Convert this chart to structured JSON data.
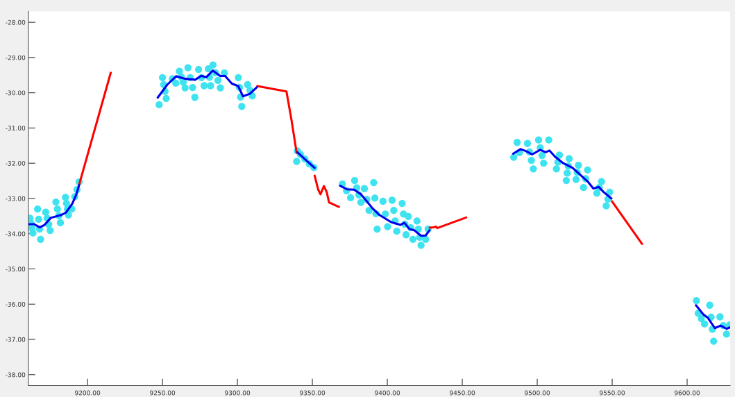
{
  "chart_data": {
    "type": "scatter",
    "xlim": [
      9160.6,
      9628.7
    ],
    "ylim": [
      -38.31,
      -27.69
    ],
    "xticks": [
      {
        "value": 9200,
        "label": "9200.00"
      },
      {
        "value": 9250,
        "label": "9250.00"
      },
      {
        "value": 9300,
        "label": "9300.00"
      },
      {
        "value": 9350,
        "label": "9350.00"
      },
      {
        "value": 9400,
        "label": "9400.00"
      },
      {
        "value": 9450,
        "label": "9450.00"
      },
      {
        "value": 9500,
        "label": "9500.00"
      },
      {
        "value": 9550,
        "label": "9550.00"
      },
      {
        "value": 9600,
        "label": "9600.00"
      }
    ],
    "yticks": [
      {
        "value": -28,
        "label": "-28.00"
      },
      {
        "value": -29,
        "label": "-29.00"
      },
      {
        "value": -30,
        "label": "-30.00"
      },
      {
        "value": -31,
        "label": "-31.00"
      },
      {
        "value": -32,
        "label": "-32.00"
      },
      {
        "value": -33,
        "label": "-33.00"
      },
      {
        "value": -34,
        "label": "-34.00"
      },
      {
        "value": -35,
        "label": "-35.00"
      },
      {
        "value": -36,
        "label": "-36.00"
      },
      {
        "value": -37,
        "label": "-37.00"
      },
      {
        "value": -38,
        "label": "-38.00"
      }
    ],
    "grid": false,
    "series": [
      {
        "marker": "circle",
        "color": "#3fe3f0",
        "x": [
          9161.6,
          9162.3,
          9162.9,
          9163.6,
          9166.7,
          9167.4,
          9168.0,
          9168.7,
          9172.1,
          9173.1,
          9174.1,
          9175.1,
          9178.9,
          9179.9,
          9180.9,
          9181.9,
          9185.3,
          9186.0,
          9186.6,
          9187.3,
          9189.5,
          9191.5,
          9193.0,
          9194.4,
          9247.8,
          9250.0,
          9250.8,
          9251.7,
          9252.5,
          9256.6,
          9258.9,
          9261.3,
          9262.6,
          9263.8,
          9265.1,
          9267.0,
          9268.5,
          9270.1,
          9271.6,
          9274.1,
          9276.0,
          9277.8,
          9280.6,
          9281.4,
          9282.1,
          9283.7,
          9285.3,
          9287.0,
          9288.6,
          9291.3,
          9300.6,
          9301.4,
          9302.1,
          9302.9,
          9306.8,
          9308.4,
          9309.9,
          9339.5,
          9340.0,
          9342.0,
          9345.0,
          9348.0,
          9351.0,
          9370.0,
          9372.8,
          9375.5,
          9378.2,
          9379.6,
          9381.0,
          9382.4,
          9384.7,
          9386.3,
          9387.8,
          9390.9,
          9391.7,
          9392.4,
          9393.2,
          9397.1,
          9398.7,
          9400.2,
          9403.2,
          9404.3,
          9405.2,
          9406.3,
          9409.9,
          9410.8,
          9411.7,
          9412.5,
          9414.0,
          9415.6,
          9417.1,
          9419.8,
          9420.7,
          9421.6,
          9422.5,
          9427.2,
          9425.6,
          9484.3,
          9486.6,
          9488.1,
          9493.5,
          9494.8,
          9496.1,
          9497.4,
          9500.9,
          9502.0,
          9503.2,
          9504.3,
          9507.7,
          9514.8,
          9513.8,
          9512.8,
          9521.3,
          9520.7,
          9520.0,
          9519.4,
          9527.5,
          9526.7,
          9525.9,
          9533.6,
          9532.3,
          9530.9,
          9542.9,
          9541.4,
          9539.8,
          9548.3,
          9547.2,
          9546.0,
          9606.2,
          9607.4,
          9609.5,
          9611.6,
          9615.1,
          9616.0,
          9616.8,
          9617.7,
          9621.9,
          9624.1,
          9626.3,
          9628.5
        ],
        "values": [
          -33.56,
          -33.7,
          -33.84,
          -33.98,
          -33.3,
          -33.59,
          -33.87,
          -34.16,
          -33.39,
          -33.56,
          -33.74,
          -33.91,
          -33.1,
          -33.3,
          -33.49,
          -33.69,
          -32.97,
          -33.14,
          -33.3,
          -33.47,
          -33.3,
          -32.95,
          -32.75,
          -32.53,
          -30.34,
          -29.57,
          -29.77,
          -29.96,
          -30.16,
          -29.6,
          -29.73,
          -29.39,
          -29.55,
          -29.7,
          -29.86,
          -29.29,
          -29.57,
          -29.85,
          -30.13,
          -29.34,
          -29.57,
          -29.8,
          -29.32,
          -29.56,
          -29.8,
          -29.21,
          -29.43,
          -29.65,
          -29.86,
          -29.44,
          -29.57,
          -29.85,
          -30.12,
          -30.39,
          -29.77,
          -29.93,
          -30.09,
          -31.95,
          -31.65,
          -31.75,
          -31.88,
          -32.02,
          -32.12,
          -32.59,
          -32.78,
          -32.98,
          -32.49,
          -32.7,
          -32.9,
          -33.11,
          -32.72,
          -33.03,
          -33.34,
          -32.55,
          -32.99,
          -33.43,
          -33.87,
          -33.08,
          -33.44,
          -33.8,
          -33.05,
          -33.34,
          -33.64,
          -33.93,
          -33.14,
          -33.44,
          -33.73,
          -34.03,
          -33.51,
          -33.83,
          -34.16,
          -33.64,
          -33.87,
          -34.1,
          -34.33,
          -33.87,
          -34.16,
          -31.83,
          -31.41,
          -31.7,
          -31.44,
          -31.68,
          -31.92,
          -32.16,
          -31.34,
          -31.56,
          -31.78,
          -32.0,
          -31.34,
          -31.77,
          -31.97,
          -32.16,
          -31.87,
          -32.08,
          -32.28,
          -32.49,
          -32.06,
          -32.26,
          -32.46,
          -32.19,
          -32.44,
          -32.69,
          -32.52,
          -32.69,
          -32.85,
          -32.82,
          -33.02,
          -33.21,
          -35.9,
          -36.26,
          -36.41,
          -36.56,
          -36.03,
          -36.37,
          -36.71,
          -37.05,
          -36.36,
          -36.61,
          -36.85,
          -36.59
        ]
      },
      {
        "type": "line",
        "line_style": "solid",
        "color": "#ff0000",
        "x": [
          9194.4,
          9215.5,
          9250,
          9313.3,
          9332.7,
          9336.1,
          9339.5,
          9345,
          9351.5,
          9353.9,
          9355.4,
          9357.7,
          9359.6,
          9361.1,
          9367.7,
          9400,
          9428.2,
          9431.0,
          9432.5,
          9433.3,
          9452.6,
          9500,
          9549.9,
          9569.9
        ],
        "values": [
          -32.61,
          -29.43,
          null,
          -29.81,
          -29.96,
          -30.78,
          -31.7,
          null,
          -32.35,
          -32.75,
          -32.88,
          -32.65,
          -32.82,
          -33.11,
          -33.24,
          null,
          -33.83,
          -33.82,
          -33.8,
          -33.84,
          -33.54,
          null,
          -33.08,
          -34.29
        ]
      },
      {
        "type": "line",
        "line_style": "solid",
        "color": "#0000ee",
        "x": [
          9160.6,
          9164.4,
          9168.1,
          9171.3,
          9175.5,
          9182.4,
          9185.6,
          9189.8,
          9192.6,
          9194.4,
          9220,
          9246.8,
          9253.2,
          9259.1,
          9264.8,
          9271.8,
          9275.9,
          9279.2,
          9283.6,
          9288.7,
          9291.7,
          9296.3,
          9300.5,
          9303.7,
          9308.3,
          9313.0,
          9325,
          9340.0,
          9345.4,
          9351.5,
          9360,
          9368.5,
          9373.1,
          9377.8,
          9382.4,
          9386.3,
          9390.1,
          9394.8,
          9402.5,
          9408.7,
          9411.4,
          9414.8,
          9417.9,
          9422.5,
          9425.6,
          9428.2,
          9450,
          9483.9,
          9488.9,
          9492.7,
          9496.6,
          9502.0,
          9505.6,
          9508.2,
          9512.0,
          9517.4,
          9523.6,
          9528.2,
          9533.7,
          9537.5,
          9540.9,
          9544.4,
          9549.5,
          9580,
          9605.9,
          9610.8,
          9613.9,
          9618.5,
          9622.4,
          9626.3,
          9628.5
        ],
        "values": [
          -33.73,
          -33.73,
          -33.82,
          -33.75,
          -33.55,
          -33.47,
          -33.4,
          -33.15,
          -32.88,
          -32.62,
          null,
          -30.14,
          -29.77,
          -29.53,
          -29.6,
          -29.63,
          -29.52,
          -29.56,
          -29.37,
          -29.53,
          -29.52,
          -29.74,
          -29.81,
          -30.1,
          -30.03,
          -29.84,
          null,
          -31.69,
          -31.9,
          -32.13,
          null,
          -32.64,
          -32.74,
          -32.75,
          -32.88,
          -33.08,
          -33.28,
          -33.47,
          -33.67,
          -33.75,
          -33.69,
          -33.87,
          -33.9,
          -34.06,
          -34.05,
          -33.9,
          null,
          -31.73,
          -31.6,
          -31.66,
          -31.75,
          -31.62,
          -31.69,
          -31.64,
          -31.82,
          -32.0,
          -32.13,
          -32.31,
          -32.52,
          -32.72,
          -32.67,
          -32.82,
          -33.0,
          null,
          -36.03,
          -36.29,
          -36.39,
          -36.68,
          -36.61,
          -36.7,
          -36.66
        ]
      }
    ]
  }
}
